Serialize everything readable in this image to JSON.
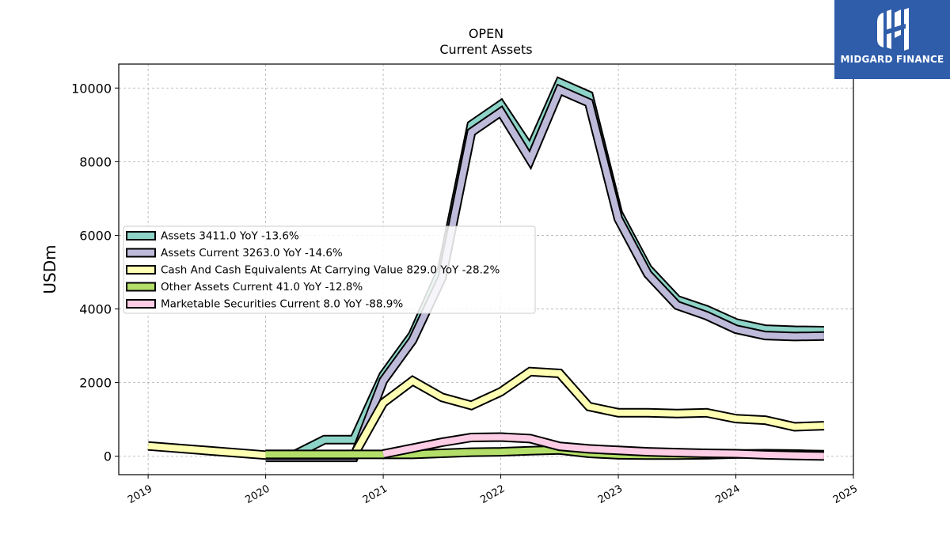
{
  "brand": {
    "name": "MIDGARD FINANCE",
    "bg_color": "#2f5daa"
  },
  "chart_data": {
    "type": "line",
    "title": "OPEN",
    "subtitle": "Current  Assets",
    "ylabel": "USDm",
    "xlim": [
      2018.75,
      2025.0
    ],
    "ylim": [
      -500,
      10650
    ],
    "yticks": [
      0,
      2000,
      4000,
      6000,
      8000,
      10000
    ],
    "xticks": [
      "2019",
      "2020",
      "2021",
      "2022",
      "2023",
      "2024",
      "2025"
    ],
    "grid": true,
    "legend_position": "center-left",
    "series": [
      {
        "name": "Assets  3411.0 YoY -13.6%",
        "color": "#8dd3c7",
        "points": [
          [
            2020.0,
            50
          ],
          [
            2020.25,
            50
          ],
          [
            2020.5,
            450
          ],
          [
            2020.75,
            450
          ],
          [
            2021.0,
            2200
          ],
          [
            2021.25,
            3300
          ],
          [
            2021.5,
            5100
          ],
          [
            2021.75,
            9000
          ],
          [
            2022.0,
            9550
          ],
          [
            2022.25,
            8350
          ],
          [
            2022.5,
            10150
          ],
          [
            2022.75,
            9800
          ],
          [
            2023.0,
            6600
          ],
          [
            2023.25,
            5100
          ],
          [
            2023.5,
            4250
          ],
          [
            2023.75,
            3980
          ],
          [
            2024.0,
            3620
          ],
          [
            2024.25,
            3450
          ],
          [
            2024.5,
            3420
          ],
          [
            2024.75,
            3411
          ]
        ]
      },
      {
        "name": "Assets Current  3263.0 YoY -14.6%",
        "color": "#bebada",
        "points": [
          [
            2020.0,
            -30
          ],
          [
            2020.25,
            -30
          ],
          [
            2020.5,
            -30
          ],
          [
            2020.75,
            -30
          ],
          [
            2021.0,
            2050
          ],
          [
            2021.25,
            3150
          ],
          [
            2021.5,
            4850
          ],
          [
            2021.75,
            8800
          ],
          [
            2022.0,
            9350
          ],
          [
            2022.25,
            8050
          ],
          [
            2022.5,
            9950
          ],
          [
            2022.75,
            9600
          ],
          [
            2023.0,
            6450
          ],
          [
            2023.25,
            4950
          ],
          [
            2023.5,
            4100
          ],
          [
            2023.75,
            3820
          ],
          [
            2024.0,
            3450
          ],
          [
            2024.25,
            3280
          ],
          [
            2024.5,
            3250
          ],
          [
            2024.75,
            3263
          ]
        ]
      },
      {
        "name": "Cash And Cash Equivalents At Carrying Value  829.0 YoY -28.2%",
        "color": "#ffffb3",
        "points": [
          [
            2019.0,
            280
          ],
          [
            2020.0,
            30
          ],
          [
            2020.25,
            30
          ],
          [
            2020.5,
            30
          ],
          [
            2020.75,
            30
          ],
          [
            2021.0,
            1450
          ],
          [
            2021.25,
            2050
          ],
          [
            2021.5,
            1600
          ],
          [
            2021.75,
            1380
          ],
          [
            2022.0,
            1750
          ],
          [
            2022.25,
            2300
          ],
          [
            2022.5,
            2250
          ],
          [
            2022.75,
            1350
          ],
          [
            2023.0,
            1180
          ],
          [
            2023.25,
            1180
          ],
          [
            2023.5,
            1160
          ],
          [
            2023.75,
            1180
          ],
          [
            2024.0,
            1020
          ],
          [
            2024.25,
            980
          ],
          [
            2024.5,
            800
          ],
          [
            2024.75,
            829
          ]
        ]
      },
      {
        "name": "Other Assets Current  41.0 YoY -12.8%",
        "color": "#b3de69",
        "points": [
          [
            2020.0,
            50
          ],
          [
            2020.25,
            50
          ],
          [
            2020.5,
            50
          ],
          [
            2020.75,
            50
          ],
          [
            2021.0,
            50
          ],
          [
            2021.25,
            50
          ],
          [
            2021.5,
            80
          ],
          [
            2021.75,
            110
          ],
          [
            2022.0,
            120
          ],
          [
            2022.25,
            150
          ],
          [
            2022.5,
            170
          ],
          [
            2022.75,
            80
          ],
          [
            2023.0,
            40
          ],
          [
            2023.25,
            30
          ],
          [
            2023.5,
            30
          ],
          [
            2023.75,
            40
          ],
          [
            2024.0,
            60
          ],
          [
            2024.25,
            70
          ],
          [
            2024.5,
            60
          ],
          [
            2024.75,
            41
          ]
        ]
      },
      {
        "name": "Marketable Securities Current  8.0 YoY -88.9%",
        "color": "#fccde5",
        "points": [
          [
            2021.0,
            60
          ],
          [
            2021.25,
            220
          ],
          [
            2021.5,
            380
          ],
          [
            2021.75,
            510
          ],
          [
            2022.0,
            520
          ],
          [
            2022.25,
            480
          ],
          [
            2022.5,
            270
          ],
          [
            2022.75,
            200
          ],
          [
            2023.0,
            160
          ],
          [
            2023.25,
            120
          ],
          [
            2023.5,
            100
          ],
          [
            2023.75,
            80
          ],
          [
            2024.0,
            70
          ],
          [
            2024.25,
            40
          ],
          [
            2024.5,
            20
          ],
          [
            2024.75,
            8
          ]
        ]
      }
    ]
  }
}
